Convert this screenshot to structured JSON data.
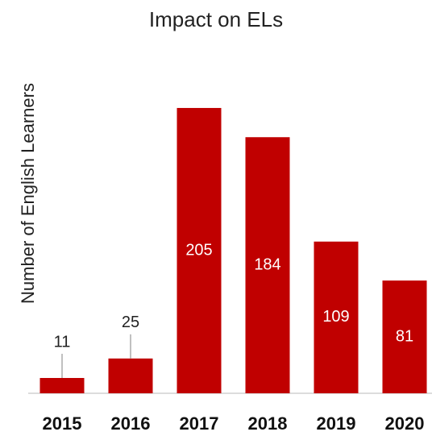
{
  "chart_data": {
    "type": "bar",
    "title": "Impact on ELs",
    "y_label": "Number of English Learners",
    "categories": [
      "2015",
      "2016",
      "2017",
      "2018",
      "2019",
      "2020"
    ],
    "values": [
      11,
      25,
      205,
      184,
      109,
      81
    ],
    "color": "#c00000"
  }
}
